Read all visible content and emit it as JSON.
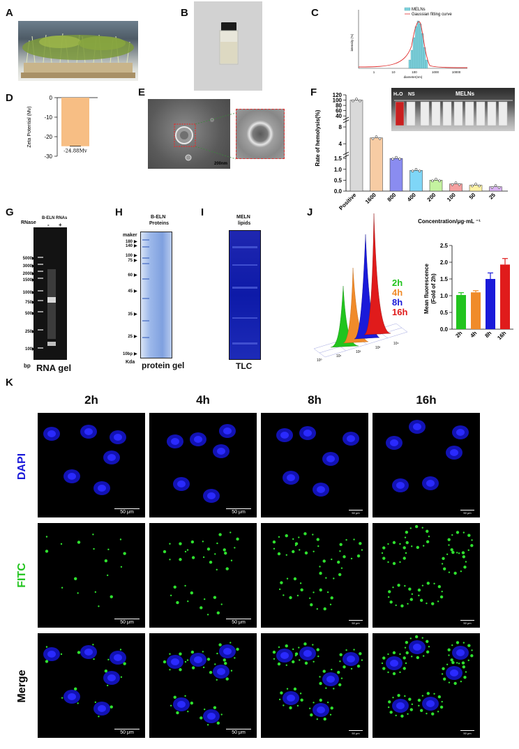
{
  "panel_letters": [
    "A",
    "B",
    "C",
    "D",
    "E",
    "F",
    "G",
    "H",
    "I",
    "J",
    "K"
  ],
  "panel_c": {
    "legend": [
      "MELNs",
      "Gaussian fitting curve"
    ],
    "ylabel": "intensity (%)",
    "xlabel": "diameter(nm)",
    "xticks": [
      "1",
      "10",
      "100",
      "1000",
      "10000"
    ]
  },
  "panel_e": {
    "scale_label": "200nm"
  },
  "panel_f": {
    "inset_labels": [
      "H₂O",
      "NS",
      "MELNs"
    ]
  },
  "panel_g": {
    "title": "B-ELN RNAs",
    "rnase_label": "RNase",
    "lane_signs": [
      "-",
      "+"
    ],
    "markers": [
      "5000",
      "3000",
      "2000",
      "1500",
      "1000",
      "750",
      "500",
      "250",
      "100"
    ],
    "unit": "bp",
    "caption": "RNA gel"
  },
  "panel_h": {
    "title_line1": "B-ELN",
    "title_line2": "Proteins",
    "maker_label": "maker",
    "markers": [
      "180",
      "140",
      "100",
      "75",
      "60",
      "45",
      "35",
      "25",
      "10bp"
    ],
    "unit": "Kda",
    "caption": "protein gel"
  },
  "panel_i": {
    "title_line1": "MELN",
    "title_line2": "lipids",
    "caption": "TLC"
  },
  "panel_j": {
    "legend": [
      "2h",
      "4h",
      "8h",
      "16h"
    ],
    "colors": [
      "#22c41e",
      "#f08b2a",
      "#1a1ad9",
      "#e01b1b"
    ],
    "flow_xticks": [
      "10⁰",
      "10¹",
      "10²",
      "10³",
      "10⁴"
    ]
  },
  "panel_k": {
    "columns": [
      "2h",
      "4h",
      "8h",
      "16h"
    ],
    "rows": [
      "DAPI",
      "FITC",
      "Merge"
    ],
    "row_colors": [
      "#1a1ad9",
      "#22c41e",
      "#000000"
    ],
    "scale_label": "50 μm",
    "scale_small": "50 μm"
  },
  "chart_data": [
    {
      "id": "D",
      "type": "bar",
      "categories": [
        ""
      ],
      "values": [
        -24.88
      ],
      "ylabel": "Zeta Potential (Mv)",
      "ylim": [
        -30,
        0
      ],
      "yticks": [
        "0",
        "-10",
        "-20",
        "-30"
      ],
      "data_labels": [
        "-24.88Mv"
      ],
      "color": "#f7be84"
    },
    {
      "id": "F",
      "type": "bar",
      "categories": [
        "Positive",
        "1600",
        "800",
        "400",
        "200",
        "100",
        "50",
        "25"
      ],
      "values": [
        100,
        5.4,
        1.5,
        0.95,
        0.5,
        0.33,
        0.27,
        0.2
      ],
      "colors": [
        "#d9d9d9",
        "#f7ccA4",
        "#8a8cf0",
        "#7fd6f7",
        "#c4f2a0",
        "#f5a0a0",
        "#fff2a6",
        "#d9b3f2"
      ],
      "ylabel": "Rate of hemolysis(%)",
      "xlabel": "Concentration/μg·mL ⁻¹",
      "yticks_top": [
        "120",
        "100",
        "80",
        "60",
        "40"
      ],
      "yticks_mid": [
        "8",
        "4"
      ],
      "yticks_low": [
        "1.5",
        "1.0",
        "0.5",
        "0.0"
      ]
    },
    {
      "id": "J",
      "type": "bar",
      "categories": [
        "2h",
        "4h",
        "8h",
        "16h"
      ],
      "values": [
        1.02,
        1.1,
        1.5,
        1.93
      ],
      "errors": [
        0.07,
        0.05,
        0.18,
        0.18
      ],
      "colors": [
        "#22c41e",
        "#f08b2a",
        "#1a1ad9",
        "#e01b1b"
      ],
      "ylabel_line1": "Mean fluorescence",
      "ylabel_line2": "(Fold of 2h)",
      "ylim": [
        0,
        2.5
      ],
      "yticks": [
        "0.0",
        "0.5",
        "1.0",
        "1.5",
        "2.0",
        "2.5"
      ]
    }
  ]
}
